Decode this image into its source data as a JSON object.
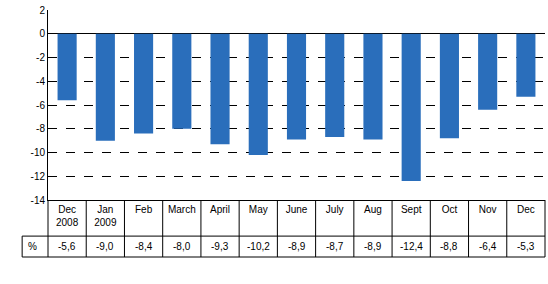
{
  "chart_data": {
    "type": "bar",
    "categories": [
      "Dec 2008",
      "Jan 2009",
      "Feb",
      "March",
      "April",
      "May",
      "June",
      "July",
      "Aug",
      "Sept",
      "Oct",
      "Nov",
      "Dec"
    ],
    "values": [
      -5.6,
      -9.0,
      -8.4,
      -8.0,
      -9.3,
      -10.2,
      -8.9,
      -8.7,
      -8.9,
      -12.4,
      -8.8,
      -6.4,
      -5.3
    ],
    "value_labels": [
      "-5,6",
      "-9,0",
      "-8,4",
      "-8,0",
      "-9,3",
      "-10,2",
      "-8,9",
      "-8,7",
      "-8,9",
      "-12,4",
      "-8,8",
      "-6,4",
      "-5,3"
    ],
    "data_labels": true,
    "annotations": [
      "%"
    ],
    "color": "#2a6ebb",
    "ylim": [
      -14,
      2
    ],
    "yticks": [
      -14,
      -12,
      -10,
      -8,
      -6,
      -4,
      -2,
      0,
      2
    ],
    "grid": true
  }
}
